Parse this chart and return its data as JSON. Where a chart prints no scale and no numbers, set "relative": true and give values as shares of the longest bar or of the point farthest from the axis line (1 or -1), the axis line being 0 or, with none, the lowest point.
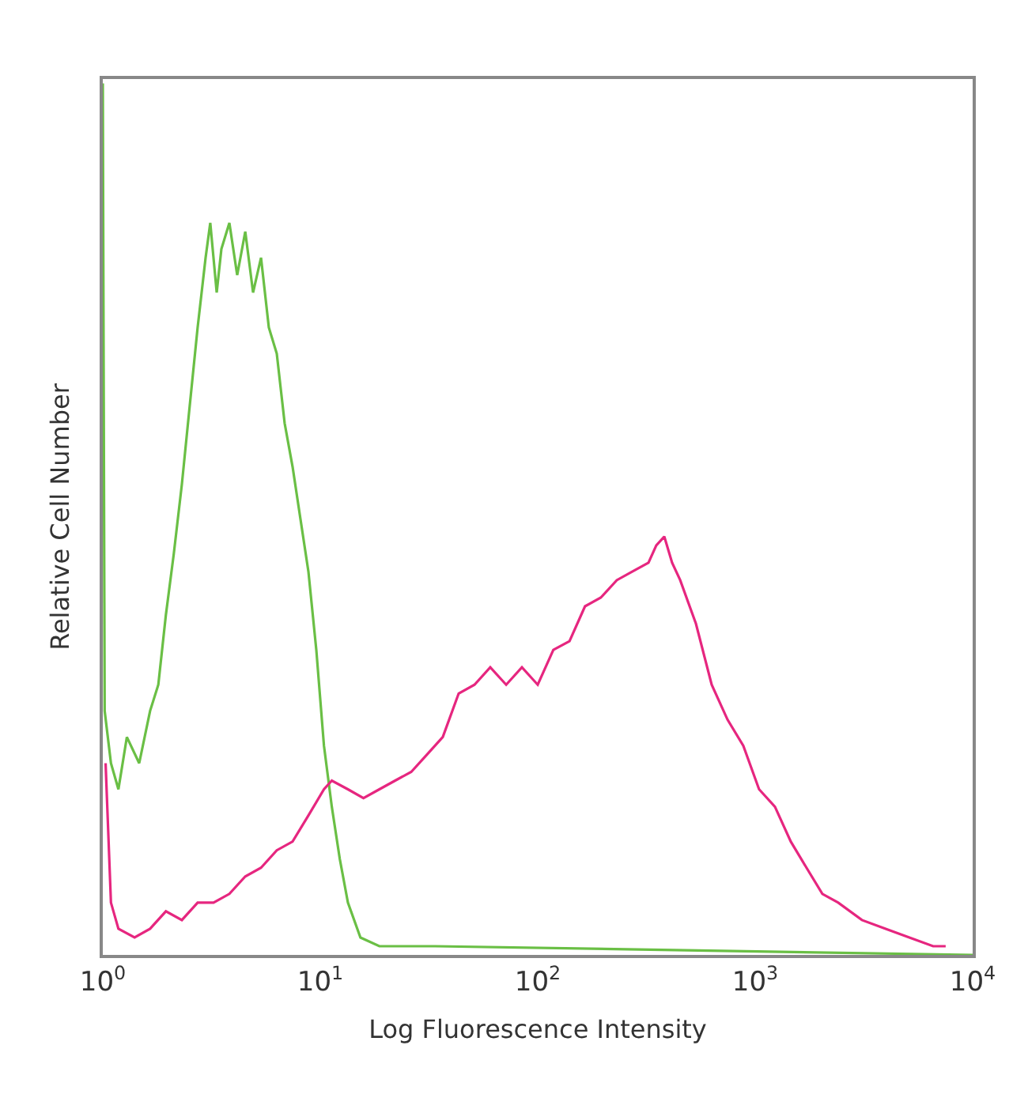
{
  "chart_data": {
    "type": "line",
    "relative": true,
    "log": "x",
    "xlabel": "Log Fluorescence Intensity",
    "ylabel": "Relative Cell Number",
    "xlim": [
      1,
      10000
    ],
    "xticks": [
      {
        "value": 1,
        "label": "10$^{0}$"
      },
      {
        "value": 10,
        "label": "10$^{1}$"
      },
      {
        "value": 100,
        "label": "10$^{2}$"
      },
      {
        "value": 1000,
        "label": "10$^{3}$"
      },
      {
        "value": 10000,
        "label": "10$^{4}$"
      }
    ],
    "marker": "none",
    "line_style": "solid",
    "series": [
      {
        "color": "#6abf45",
        "x": [
          1,
          1.02,
          1.09,
          1.18,
          1.29,
          1.47,
          1.65,
          1.8,
          1.95,
          2.12,
          2.31,
          2.51,
          2.73,
          2.97,
          3.12,
          3.34,
          3.51,
          3.82,
          4.15,
          4.52,
          4.91,
          5.34,
          5.8,
          6.31,
          6.86,
          7.46,
          8.11,
          8.82,
          9.59,
          10.4,
          11.3,
          12.3,
          13.4,
          15.3,
          18.7,
          26.2,
          33.7,
          10000
        ],
        "values": [
          1.0,
          0.28,
          0.22,
          0.19,
          0.25,
          0.22,
          0.28,
          0.31,
          0.39,
          0.46,
          0.54,
          0.63,
          0.72,
          0.8,
          0.84,
          0.76,
          0.81,
          0.84,
          0.78,
          0.83,
          0.76,
          0.8,
          0.72,
          0.69,
          0.61,
          0.56,
          0.5,
          0.44,
          0.35,
          0.24,
          0.17,
          0.11,
          0.06,
          0.02,
          0.01,
          0.01,
          0.01,
          0
        ]
      },
      {
        "color": "#e6267f",
        "x": [
          1.03,
          1.09,
          1.18,
          1.4,
          1.65,
          1.95,
          2.31,
          2.73,
          3.23,
          3.82,
          4.52,
          5.34,
          6.31,
          7.46,
          8.82,
          10.4,
          11.3,
          13.4,
          15.8,
          18.7,
          22.1,
          26.2,
          31.0,
          36.6,
          43.3,
          51.2,
          60.5,
          71.6,
          84.6,
          100,
          118,
          140,
          165,
          195,
          231,
          273,
          323,
          351,
          382,
          415,
          452,
          534,
          631,
          746,
          882,
          1042,
          1233,
          1458,
          1722,
          2037,
          2409,
          3097,
          3981,
          5117,
          6579,
          7516
        ],
        "values": [
          0.22,
          0.06,
          0.03,
          0.02,
          0.03,
          0.05,
          0.04,
          0.06,
          0.06,
          0.07,
          0.09,
          0.1,
          0.12,
          0.13,
          0.16,
          0.19,
          0.2,
          0.19,
          0.18,
          0.19,
          0.2,
          0.21,
          0.23,
          0.25,
          0.3,
          0.31,
          0.33,
          0.31,
          0.33,
          0.31,
          0.35,
          0.36,
          0.4,
          0.41,
          0.43,
          0.44,
          0.45,
          0.47,
          0.48,
          0.45,
          0.43,
          0.38,
          0.31,
          0.27,
          0.24,
          0.19,
          0.17,
          0.13,
          0.1,
          0.07,
          0.06,
          0.04,
          0.03,
          0.02,
          0.01,
          0.01
        ]
      }
    ]
  }
}
